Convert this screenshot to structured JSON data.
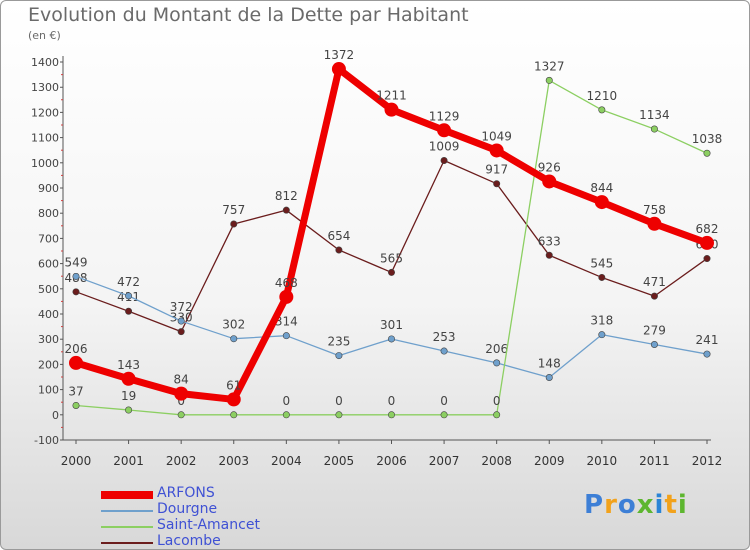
{
  "title": "Evolution du Montant de la Dette par Habitant",
  "subtitle": "(en €)",
  "logo": {
    "text": "Proxiti",
    "colors": [
      "#3d7fd6",
      "#f2a21b",
      "#3d7fd6",
      "#5db62f",
      "#2a84d6",
      "#f2a21b",
      "#5db62f"
    ]
  },
  "chart_data": {
    "type": "line",
    "x": [
      "2000",
      "2001",
      "2002",
      "2003",
      "2004",
      "2005",
      "2006",
      "2007",
      "2008",
      "2009",
      "2010",
      "2011",
      "2012"
    ],
    "ylim": [
      -100,
      1400
    ],
    "yticks": [
      -100,
      0,
      100,
      200,
      300,
      400,
      500,
      600,
      700,
      800,
      900,
      1000,
      1100,
      1200,
      1300,
      1400
    ],
    "grid": false,
    "legend_position": "bottom-left",
    "series": [
      {
        "name": "Lacombe",
        "color": "#6b1d1d",
        "values": [
          488,
          411,
          330,
          757,
          812,
          654,
          565,
          1009,
          917,
          633,
          545,
          471,
          620
        ]
      },
      {
        "name": "Dourgne",
        "color": "#6fa0cc",
        "values": [
          549,
          472,
          372,
          302,
          314,
          235,
          301,
          253,
          206,
          148,
          318,
          279,
          241
        ]
      },
      {
        "name": "Saint-Amancet",
        "color": "#8ccf62",
        "values": [
          37,
          19,
          0,
          0,
          0,
          0,
          0,
          0,
          0,
          1327,
          1210,
          1134,
          1038
        ]
      },
      {
        "name": "ARFONS",
        "color": "#ee0000",
        "values": [
          206,
          143,
          84,
          61,
          468,
          1372,
          1211,
          1129,
          1049,
          926,
          844,
          758,
          682
        ]
      }
    ],
    "legend_order": [
      "ARFONS",
      "Dourgne",
      "Saint-Amancet",
      "Lacombe"
    ]
  }
}
